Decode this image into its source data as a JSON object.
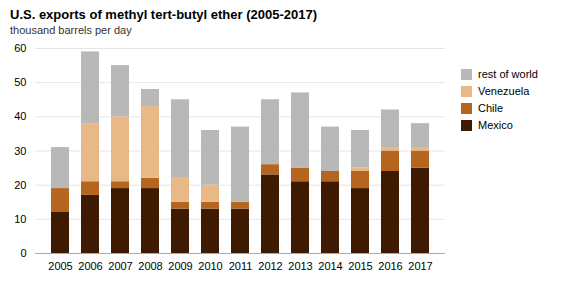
{
  "chart_data": {
    "type": "bar",
    "title": "U.S. exports of methyl tert-butyl ether (2005-2017)",
    "subtitle": "thousand barrels per day",
    "categories": [
      "2005",
      "2006",
      "2007",
      "2008",
      "2009",
      "2010",
      "2011",
      "2012",
      "2013",
      "2014",
      "2015",
      "2016",
      "2017"
    ],
    "series": [
      {
        "name": "Mexico",
        "color": "#3d1a00",
        "values": [
          12,
          17,
          19,
          19,
          13,
          13,
          13,
          23,
          21,
          21,
          19,
          24,
          25
        ]
      },
      {
        "name": "Chile",
        "color": "#b5651d",
        "values": [
          7,
          4,
          2,
          3,
          2,
          2,
          2,
          3,
          4,
          3,
          5,
          6,
          5
        ]
      },
      {
        "name": "Venezuela",
        "color": "#e8b887",
        "values": [
          0,
          17,
          19,
          21,
          7,
          5,
          0,
          0,
          0,
          0,
          1,
          1,
          1
        ]
      },
      {
        "name": "rest of world",
        "color": "#b8b8b8",
        "values": [
          12,
          21,
          15,
          5,
          23,
          16,
          22,
          19,
          22,
          13,
          11,
          11,
          7
        ]
      }
    ],
    "stacked": true,
    "ylim": [
      0,
      60
    ],
    "yticks": [
      0,
      10,
      20,
      30,
      40,
      50,
      60
    ],
    "grid": true,
    "legend": "upper right"
  }
}
